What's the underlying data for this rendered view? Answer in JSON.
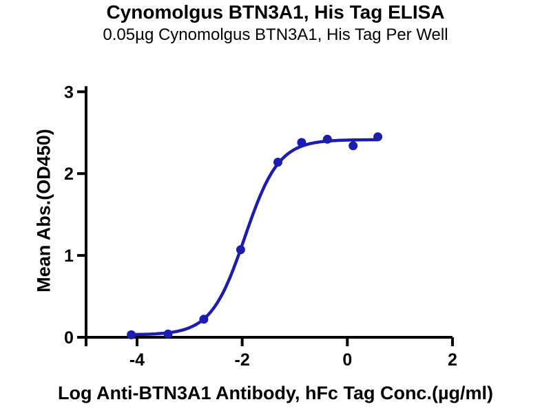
{
  "title": "Cynomolgus BTN3A1, His Tag ELISA",
  "subtitle": "0.05µg Cynomolgus BTN3A1, His Tag Per Well",
  "chart_data": {
    "type": "scatter",
    "title": "Cynomolgus BTN3A1, His Tag ELISA",
    "subtitle": "0.05µg Cynomolgus BTN3A1, His Tag Per Well",
    "xlabel": "Log Anti-BTN3A1 Antibody, hFc Tag Conc.(µg/ml)",
    "ylabel": "Mean Abs.(OD450)",
    "xlim": [
      -4.97,
      2
    ],
    "ylim": [
      0,
      3
    ],
    "xticks": [
      -4,
      -2,
      0,
      2
    ],
    "yticks": [
      0,
      1,
      2,
      3
    ],
    "grid": false,
    "legend_position": "none",
    "axis_color": "#000000",
    "background_color": "#ffffff",
    "series": [
      {
        "name": "Anti-BTN3A1 Antibody, hFc Tag",
        "color": "#1c1cb0",
        "points": [
          {
            "x": -4.11,
            "y": 0.03
          },
          {
            "x": -3.41,
            "y": 0.04
          },
          {
            "x": -2.73,
            "y": 0.22
          },
          {
            "x": -2.03,
            "y": 1.07
          },
          {
            "x": -1.32,
            "y": 2.14
          },
          {
            "x": -0.87,
            "y": 2.38
          },
          {
            "x": -0.38,
            "y": 2.42
          },
          {
            "x": 0.11,
            "y": 2.34
          },
          {
            "x": 0.58,
            "y": 2.45
          }
        ],
        "fit": {
          "model": "4PL",
          "bottom": 0.03,
          "top": 2.415,
          "logEC50": -1.95,
          "hill": 1.35
        }
      }
    ]
  }
}
